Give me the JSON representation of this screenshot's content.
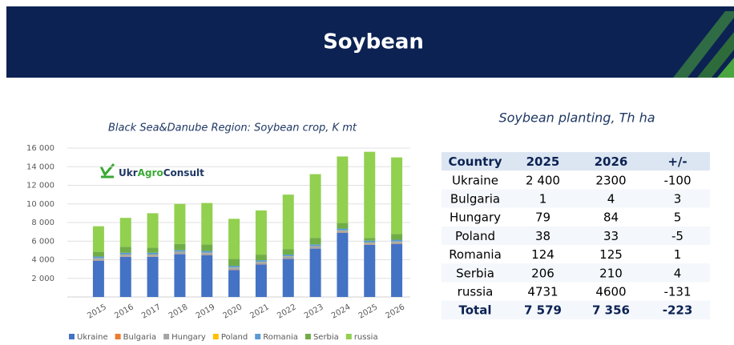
{
  "header": {
    "title": "Soybean"
  },
  "chart_data": {
    "type": "bar",
    "stacked": true,
    "title": "Black Sea&Danube Region: Soybean crop, K mt",
    "logo": [
      "Ukr",
      "Agro",
      "Consult"
    ],
    "categories": [
      "2015",
      "2016",
      "2017",
      "2018",
      "2019",
      "2020",
      "2021",
      "2022",
      "2023",
      "2024",
      "2025",
      "2026"
    ],
    "series": [
      {
        "name": "Ukraine",
        "color": "#4472c4",
        "values": [
          3900,
          4300,
          4300,
          4600,
          4500,
          2900,
          3500,
          4100,
          5200,
          6900,
          5600,
          5700
        ]
      },
      {
        "name": "Bulgaria",
        "color": "#ed7d31",
        "values": [
          20,
          20,
          20,
          20,
          20,
          20,
          20,
          20,
          20,
          20,
          20,
          20
        ]
      },
      {
        "name": "Hungary",
        "color": "#a5a5a5",
        "values": [
          200,
          200,
          200,
          200,
          200,
          200,
          200,
          200,
          200,
          200,
          200,
          200
        ]
      },
      {
        "name": "Poland",
        "color": "#ffc000",
        "values": [
          30,
          30,
          30,
          30,
          30,
          30,
          30,
          30,
          30,
          30,
          30,
          30
        ]
      },
      {
        "name": "Romania",
        "color": "#5b9bd5",
        "values": [
          200,
          200,
          200,
          200,
          200,
          200,
          200,
          200,
          200,
          200,
          200,
          200
        ]
      },
      {
        "name": "Serbia",
        "color": "#70ad47",
        "values": [
          500,
          650,
          550,
          650,
          700,
          750,
          600,
          600,
          700,
          600,
          300,
          600
        ]
      },
      {
        "name": "russia",
        "color": "#92d050",
        "values": [
          2750,
          3100,
          3700,
          4300,
          4450,
          4300,
          4750,
          5850,
          6850,
          7150,
          9250,
          8250
        ]
      }
    ],
    "ylim": [
      0,
      16000
    ],
    "yticks": [
      {
        "value": 2000,
        "label": "2 000"
      },
      {
        "value": 4000,
        "label": "4 000"
      },
      {
        "value": 6000,
        "label": "6 000"
      },
      {
        "value": 8000,
        "label": "8 000"
      },
      {
        "value": 10000,
        "label": "10 000"
      },
      {
        "value": 12000,
        "label": "12 000"
      },
      {
        "value": 14000,
        "label": "14 000"
      },
      {
        "value": 16000,
        "label": "16 000"
      }
    ],
    "grid": true,
    "legend": "bottom"
  },
  "table": {
    "title": "Soybean planting, Th ha",
    "header": [
      "Country",
      "2025",
      "2026",
      "+/-"
    ],
    "rows": [
      [
        "Ukraine",
        "2 400",
        "2300",
        "-100"
      ],
      [
        "Bulgaria",
        "1",
        "4",
        "3"
      ],
      [
        "Hungary",
        "79",
        "84",
        "5"
      ],
      [
        "Poland",
        "38",
        "33",
        "-5"
      ],
      [
        "Romania",
        "124",
        "125",
        "1"
      ],
      [
        "Serbia",
        "206",
        "210",
        "4"
      ],
      [
        "russia",
        "4731",
        "4600",
        "-131"
      ]
    ],
    "total": [
      "Total",
      "7 579",
      "7 356",
      "-223"
    ]
  }
}
